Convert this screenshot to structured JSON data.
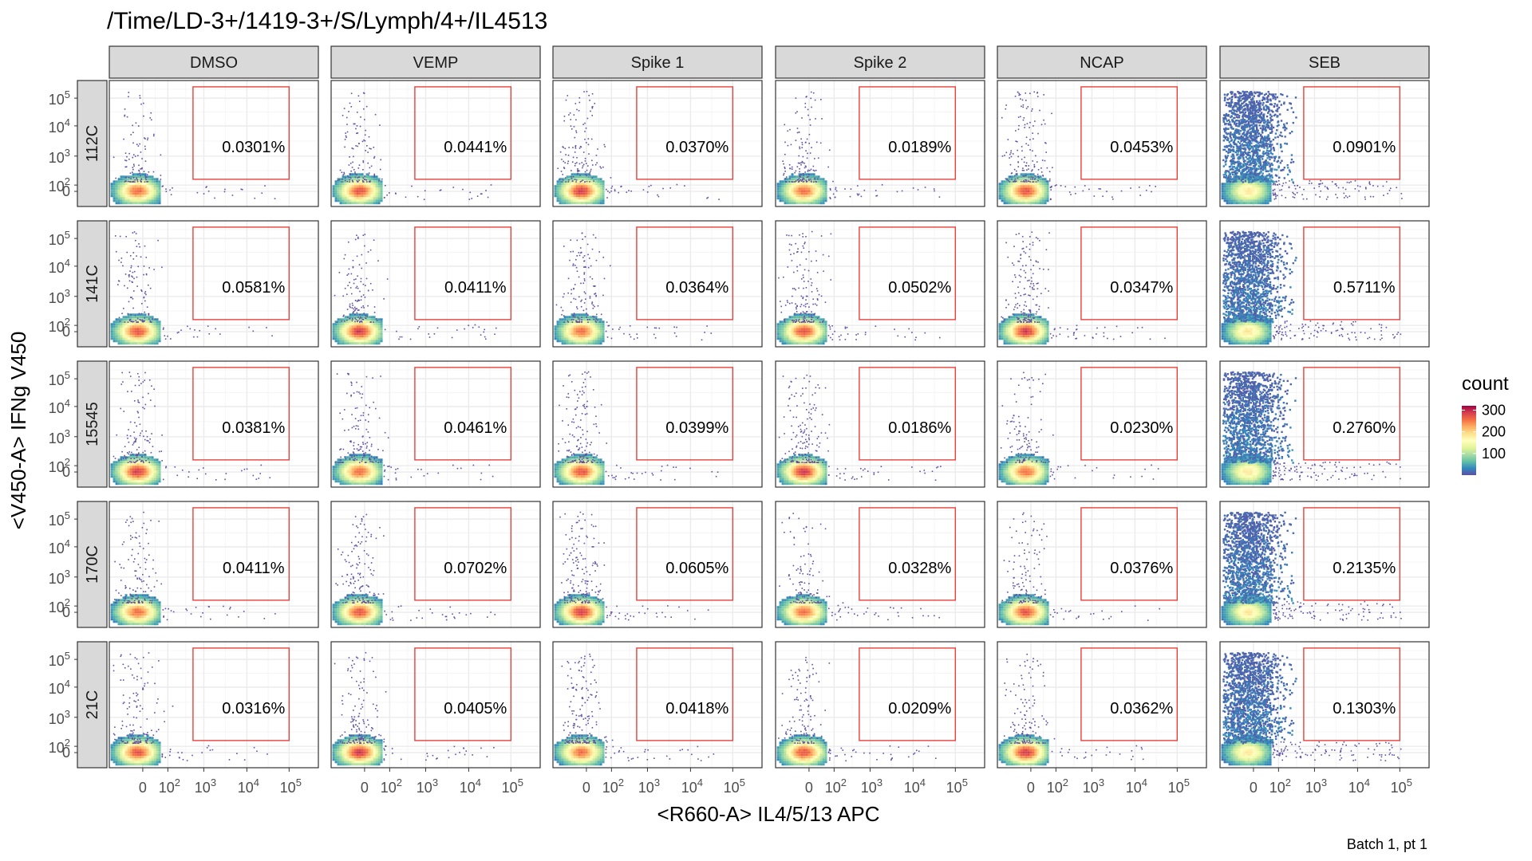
{
  "title": "/Time/LD-3+/1419-3+/S/Lymph/4+/IL4513",
  "caption": "Batch 1, pt 1",
  "legend": {
    "title": "count",
    "ticks": [
      100,
      200,
      300
    ],
    "range": [
      0,
      320
    ]
  },
  "colors": {
    "gate": "#e8413c",
    "strip_bg": "#d9d9d9",
    "panel_border": "#333333",
    "grid_major": "#ebebeb",
    "grid_minor": "#f5f5f5",
    "palette": [
      "#5e4fa2",
      "#3288bd",
      "#66c2a5",
      "#abdda4",
      "#e6f598",
      "#ffffbf",
      "#fee08b",
      "#fdae61",
      "#f46d43",
      "#d53e4f",
      "#9e0142"
    ]
  },
  "chart_data": {
    "type": "heatmap",
    "subtype": "2D density (binned flow cytometry events), faceted grid",
    "xlabel": "<R660-A> IL4/5/13 APC",
    "ylabel": "<V450-A> IFNg V450",
    "x_ticks": [
      "0",
      "10^2",
      "10^3",
      "10^4",
      "10^5"
    ],
    "y_ticks": [
      "0",
      "10^2",
      "10^3",
      "10^4",
      "10^5"
    ],
    "x_scale": "biexponential (logicle)",
    "y_scale": "biexponential (logicle)",
    "gate": {
      "x_range": [
        "~10^2.7",
        "10^5"
      ],
      "y_range": [
        "~10^2.2",
        "10^5.2"
      ]
    },
    "columns": [
      "DMSO",
      "VEMP",
      "Spike 1",
      "Spike 2",
      "NCAP",
      "SEB"
    ],
    "rows": [
      "112C",
      "141C",
      "15545",
      "170C",
      "21C"
    ],
    "gate_percentages": [
      [
        "0.0301%",
        "0.0441%",
        "0.0370%",
        "0.0189%",
        "0.0453%",
        "0.0901%"
      ],
      [
        "0.0581%",
        "0.0411%",
        "0.0364%",
        "0.0502%",
        "0.0347%",
        "0.5711%"
      ],
      [
        "0.0381%",
        "0.0461%",
        "0.0399%",
        "0.0186%",
        "0.0230%",
        "0.2760%"
      ],
      [
        "0.0411%",
        "0.0702%",
        "0.0605%",
        "0.0328%",
        "0.0376%",
        "0.2135%"
      ],
      [
        "0.0316%",
        "0.0405%",
        "0.0418%",
        "0.0209%",
        "0.0362%",
        "0.1303%"
      ]
    ],
    "legend_title": "count",
    "color_scale": "Spectral (low = purple/blue, high = dark red)",
    "grid": true
  }
}
